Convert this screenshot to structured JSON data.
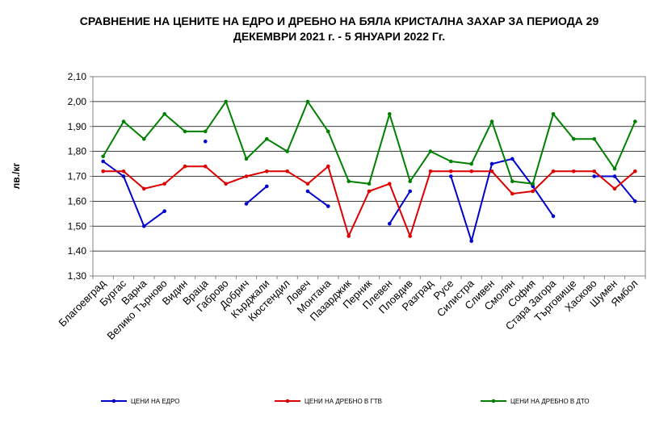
{
  "chart_data": {
    "type": "line",
    "title_line1": "СРАВНЕНИЕ НА ЦЕНИТЕ НА ЕДРО И ДРЕБНО НА БЯЛА КРИСТАЛНА ЗАХАР ЗА ПЕРИОДА 29",
    "title_line2": "ДЕКЕМВРИ 2021 г. - 5 ЯНУАРИ 2022 Гг.",
    "ylabel": "лв./кг",
    "ylim": [
      1.3,
      2.1
    ],
    "yticks": [
      "1,30",
      "1,40",
      "1,50",
      "1,60",
      "1,70",
      "1,80",
      "1,90",
      "2,00",
      "2,10"
    ],
    "grid": true,
    "legend_position": "bottom",
    "categories": [
      "Благоевград",
      "Бургас",
      "Варна",
      "Велико Търново",
      "Видин",
      "Враца",
      "Габрово",
      "Добрич",
      "Кърджали",
      "Кюстендил",
      "Ловеч",
      "Монтана",
      "Пазарджик",
      "Перник",
      "Плевен",
      "Пловдив",
      "Разград",
      "Русе",
      "Силистра",
      "Сливен",
      "Смолян",
      "София",
      "Стара Загора",
      "Търговище",
      "Хасково",
      "Шумен",
      "Ямбол"
    ],
    "series": [
      {
        "name": "ЦЕНИ НА ЕДРО",
        "color": "#0000CC",
        "values": [
          1.76,
          1.7,
          1.5,
          1.56,
          null,
          1.84,
          null,
          1.59,
          1.66,
          null,
          1.64,
          1.58,
          null,
          null,
          1.51,
          1.64,
          null,
          1.7,
          1.44,
          1.75,
          1.77,
          1.66,
          1.54,
          null,
          1.7,
          1.7,
          1.6
        ]
      },
      {
        "name": "ЦЕНИ НА ДРЕБНО В ГТВ",
        "color": "#DD0000",
        "values": [
          1.72,
          1.72,
          1.65,
          1.67,
          1.74,
          1.74,
          1.67,
          1.7,
          1.72,
          1.72,
          1.67,
          1.74,
          1.46,
          1.64,
          1.67,
          1.46,
          1.72,
          1.72,
          1.72,
          1.72,
          1.63,
          1.64,
          1.72,
          1.72,
          1.72,
          1.65,
          1.72
        ]
      },
      {
        "name": "ЦЕНИ НА ДРЕБНО В ДТО",
        "color": "#008000",
        "values": [
          1.78,
          1.92,
          1.85,
          1.95,
          1.88,
          1.88,
          2.0,
          1.77,
          1.85,
          1.8,
          2.0,
          1.88,
          1.68,
          1.67,
          1.95,
          1.68,
          1.8,
          1.76,
          1.75,
          1.92,
          1.68,
          1.67,
          1.95,
          1.85,
          1.85,
          1.73,
          1.92
        ]
      }
    ]
  }
}
